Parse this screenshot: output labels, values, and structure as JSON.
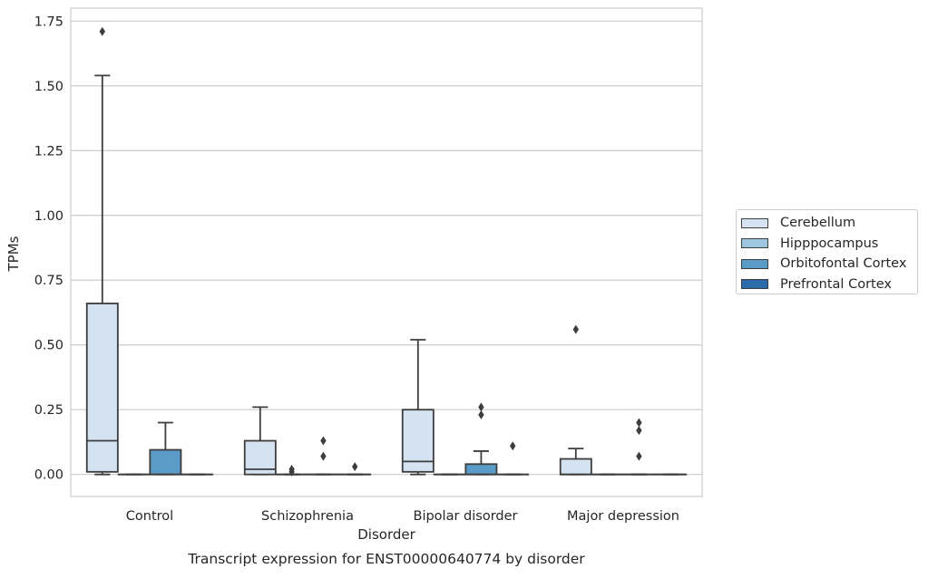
{
  "chart_data": {
    "type": "box",
    "title": "",
    "caption": "Transcript expression for ENST00000640774 by disorder",
    "xlabel": "Disorder",
    "ylabel": "TPMs",
    "ylim": [
      -0.085,
      1.8
    ],
    "yticks": [
      "0.00",
      "0.25",
      "0.50",
      "0.75",
      "1.00",
      "1.25",
      "1.50",
      "1.75"
    ],
    "ytick_values": [
      0,
      0.25,
      0.5,
      0.75,
      1.0,
      1.25,
      1.5,
      1.75
    ],
    "grid": true,
    "legend_position": "right",
    "categories": [
      "Control",
      "Schizophrenia",
      "Bipolar disorder",
      "Major depression"
    ],
    "series": [
      {
        "name": "Cerebellum",
        "color": "#d4e2f1",
        "boxes": [
          {
            "q1": 0.01,
            "median": 0.13,
            "q3": 0.66,
            "whisker_low": 0.0,
            "whisker_high": 1.54,
            "outliers": [
              1.71
            ]
          },
          {
            "q1": 0.0,
            "median": 0.02,
            "q3": 0.13,
            "whisker_low": 0.0,
            "whisker_high": 0.26,
            "outliers": []
          },
          {
            "q1": 0.01,
            "median": 0.05,
            "q3": 0.25,
            "whisker_low": 0.0,
            "whisker_high": 0.52,
            "outliers": []
          },
          {
            "q1": 0.0,
            "median": 0.0,
            "q3": 0.06,
            "whisker_low": 0.0,
            "whisker_high": 0.1,
            "outliers": [
              0.56
            ]
          }
        ]
      },
      {
        "name": "Hipppocampus",
        "color": "#9fc6e0",
        "boxes": [
          {
            "q1": 0.0,
            "median": 0.0,
            "q3": 0.0,
            "whisker_low": 0.0,
            "whisker_high": 0.0,
            "outliers": []
          },
          {
            "q1": 0.0,
            "median": 0.0,
            "q3": 0.0,
            "whisker_low": 0.0,
            "whisker_high": 0.0,
            "outliers": [
              0.02,
              0.01
            ]
          },
          {
            "q1": 0.0,
            "median": 0.0,
            "q3": 0.0,
            "whisker_low": 0.0,
            "whisker_high": 0.0,
            "outliers": []
          },
          {
            "q1": 0.0,
            "median": 0.0,
            "q3": 0.0,
            "whisker_low": 0.0,
            "whisker_high": 0.0,
            "outliers": []
          }
        ]
      },
      {
        "name": "Orbitofontal Cortex",
        "color": "#5a9bc8",
        "boxes": [
          {
            "q1": 0.0,
            "median": 0.0,
            "q3": 0.095,
            "whisker_low": 0.0,
            "whisker_high": 0.2,
            "outliers": []
          },
          {
            "q1": 0.0,
            "median": 0.0,
            "q3": 0.0,
            "whisker_low": 0.0,
            "whisker_high": 0.0,
            "outliers": [
              0.13,
              0.07
            ]
          },
          {
            "q1": 0.0,
            "median": 0.0,
            "q3": 0.04,
            "whisker_low": 0.0,
            "whisker_high": 0.09,
            "outliers": [
              0.26,
              0.23
            ]
          },
          {
            "q1": 0.0,
            "median": 0.0,
            "q3": 0.0,
            "whisker_low": 0.0,
            "whisker_high": 0.0,
            "outliers": [
              0.2,
              0.17,
              0.07
            ]
          }
        ]
      },
      {
        "name": "Prefrontal Cortex",
        "color": "#2b6ba9",
        "boxes": [
          {
            "q1": 0.0,
            "median": 0.0,
            "q3": 0.0,
            "whisker_low": 0.0,
            "whisker_high": 0.0,
            "outliers": []
          },
          {
            "q1": 0.0,
            "median": 0.0,
            "q3": 0.0,
            "whisker_low": 0.0,
            "whisker_high": 0.0,
            "outliers": [
              0.03
            ]
          },
          {
            "q1": 0.0,
            "median": 0.0,
            "q3": 0.0,
            "whisker_low": 0.0,
            "whisker_high": 0.0,
            "outliers": [
              0.11
            ]
          },
          {
            "q1": 0.0,
            "median": 0.0,
            "q3": 0.0,
            "whisker_low": 0.0,
            "whisker_high": 0.0,
            "outliers": []
          }
        ]
      }
    ]
  }
}
